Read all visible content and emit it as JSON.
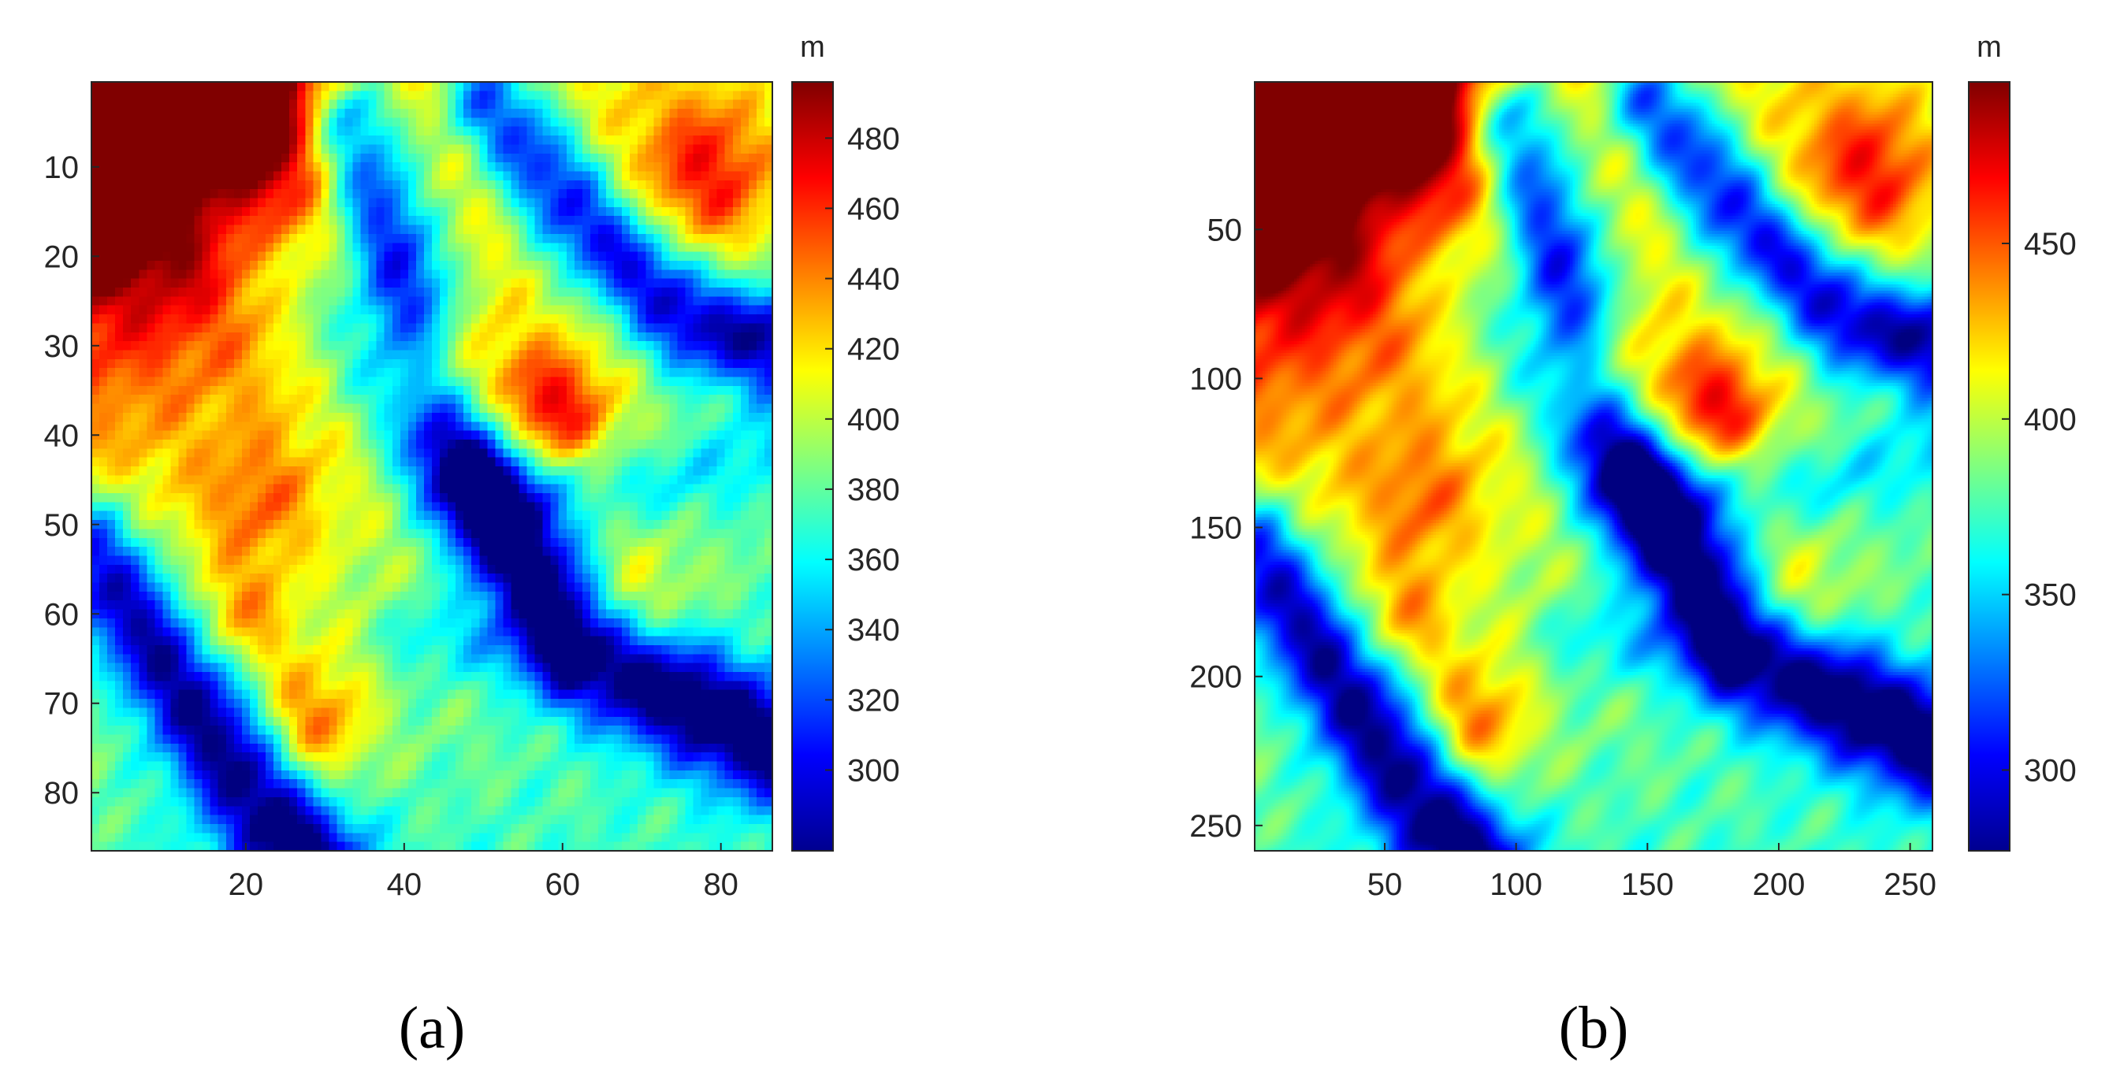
{
  "chart_data": [
    {
      "type": "heatmap",
      "panel_label": "(a)",
      "grid_size": [
        86,
        86
      ],
      "colormap": "jet",
      "x_ticks": [
        20,
        40,
        60,
        80
      ],
      "y_ticks": [
        10,
        20,
        30,
        40,
        50,
        60,
        70,
        80
      ],
      "xlim": [
        0.5,
        86.5
      ],
      "ylim": [
        0.5,
        86.5
      ],
      "y_reversed": true,
      "colorbar": {
        "unit": "m",
        "range": [
          277,
          496
        ],
        "ticks": [
          300,
          320,
          340,
          360,
          380,
          400,
          420,
          440,
          460,
          480
        ]
      },
      "value_range": [
        277,
        496
      ]
    },
    {
      "type": "heatmap",
      "panel_label": "(b)",
      "grid_size": [
        258,
        258
      ],
      "colormap": "jet",
      "x_ticks": [
        50,
        100,
        150,
        200,
        250
      ],
      "y_ticks": [
        50,
        100,
        150,
        200,
        250
      ],
      "xlim": [
        0.5,
        258.5
      ],
      "ylim": [
        0.5,
        258.5
      ],
      "y_reversed": true,
      "colorbar": {
        "unit": "m",
        "range": [
          277,
          496
        ],
        "ticks": [
          300,
          350,
          400,
          450
        ]
      },
      "value_range": [
        277,
        496
      ]
    }
  ]
}
